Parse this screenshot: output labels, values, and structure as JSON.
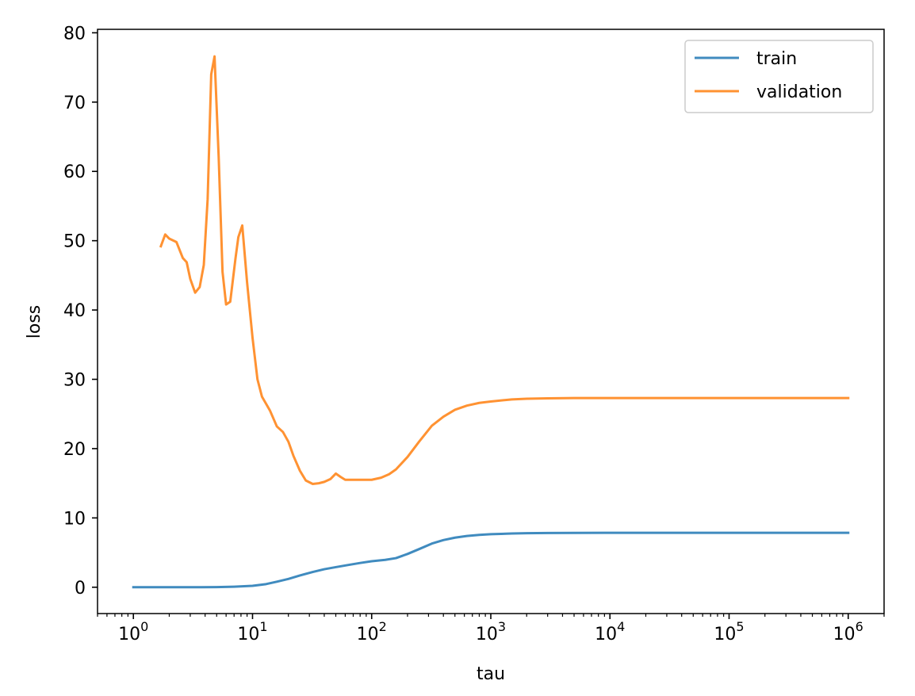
{
  "chart_data": {
    "type": "line",
    "xlabel": "tau",
    "ylabel": "loss",
    "xscale": "log",
    "xlim": [
      0.5,
      2000000
    ],
    "ylim": [
      -3.8,
      80.5
    ],
    "grid": false,
    "legend_position": "top-right",
    "x_ticks": [
      {
        "value": 1,
        "base": "10",
        "exp": "0"
      },
      {
        "value": 10,
        "base": "10",
        "exp": "1"
      },
      {
        "value": 100,
        "base": "10",
        "exp": "2"
      },
      {
        "value": 1000,
        "base": "10",
        "exp": "3"
      },
      {
        "value": 10000,
        "base": "10",
        "exp": "4"
      },
      {
        "value": 100000,
        "base": "10",
        "exp": "5"
      },
      {
        "value": 1000000,
        "base": "10",
        "exp": "6"
      }
    ],
    "y_ticks": [
      {
        "value": 0,
        "label": "0"
      },
      {
        "value": 10,
        "label": "10"
      },
      {
        "value": 20,
        "label": "20"
      },
      {
        "value": 30,
        "label": "30"
      },
      {
        "value": 40,
        "label": "40"
      },
      {
        "value": 50,
        "label": "50"
      },
      {
        "value": 60,
        "label": "60"
      },
      {
        "value": 70,
        "label": "70"
      },
      {
        "value": 80,
        "label": "80"
      }
    ],
    "series": [
      {
        "name": "train",
        "color": "#1f77b4",
        "x": [
          1,
          2,
          3,
          5,
          7,
          10,
          13,
          16,
          20,
          25,
          32,
          40,
          50,
          63,
          80,
          100,
          130,
          160,
          200,
          250,
          320,
          400,
          500,
          630,
          800,
          1000,
          1500,
          2000,
          3000,
          5000,
          10000,
          100000,
          1000000
        ],
        "y": [
          0.0,
          0.0,
          0.0,
          0.02,
          0.08,
          0.2,
          0.45,
          0.8,
          1.2,
          1.7,
          2.2,
          2.6,
          2.9,
          3.2,
          3.5,
          3.75,
          3.95,
          4.2,
          4.8,
          5.5,
          6.3,
          6.8,
          7.15,
          7.4,
          7.55,
          7.65,
          7.75,
          7.8,
          7.82,
          7.84,
          7.85,
          7.85,
          7.85
        ]
      },
      {
        "name": "validation",
        "color": "#ff7f0e",
        "x": [
          1.7,
          1.85,
          2.0,
          2.3,
          2.6,
          2.8,
          3.0,
          3.3,
          3.6,
          3.9,
          4.2,
          4.5,
          4.8,
          5.2,
          5.6,
          6.0,
          6.5,
          7.2,
          7.6,
          8.2,
          9.0,
          10,
          11,
          12,
          14,
          16,
          18,
          20,
          22,
          25,
          28,
          32,
          36,
          40,
          45,
          50,
          55,
          60,
          70,
          80,
          90,
          100,
          120,
          140,
          160,
          200,
          250,
          320,
          400,
          500,
          630,
          800,
          1000,
          1500,
          2000,
          3000,
          5000,
          10000,
          100000,
          1000000
        ],
        "y": [
          49.2,
          50.9,
          50.3,
          49.8,
          47.5,
          46.9,
          44.5,
          42.5,
          43.3,
          46.5,
          56.0,
          74.0,
          76.6,
          62.0,
          45.5,
          40.8,
          41.2,
          47.5,
          50.5,
          52.2,
          44.0,
          36.0,
          30.0,
          27.5,
          25.5,
          23.2,
          22.4,
          21.0,
          19.0,
          16.8,
          15.4,
          14.9,
          15.0,
          15.2,
          15.6,
          16.4,
          15.9,
          15.5,
          15.5,
          15.5,
          15.5,
          15.5,
          15.8,
          16.3,
          17.0,
          18.8,
          21.0,
          23.3,
          24.6,
          25.6,
          26.2,
          26.6,
          26.8,
          27.1,
          27.2,
          27.25,
          27.3,
          27.3,
          27.3,
          27.3
        ]
      }
    ]
  }
}
